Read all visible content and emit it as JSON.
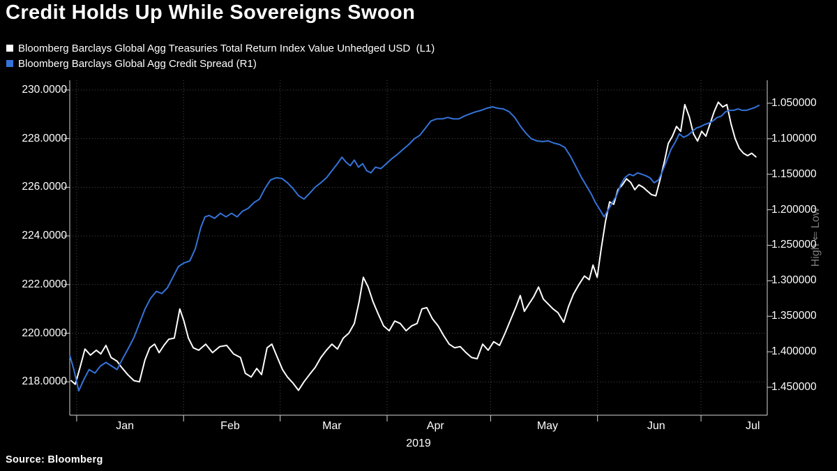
{
  "theme": {
    "background": "#000000",
    "text": "#ffffff",
    "grid": "#4c4c4c",
    "axis": "#d9d9d9",
    "muted": "#7d7d7d"
  },
  "footer": {
    "source": "Source: Bloomberg"
  },
  "chart_data": {
    "type": "line",
    "title": "Credit Holds Up While Sovereigns Swoon",
    "x_axis": {
      "year_label": "2019",
      "unit": "days since Jan 1 2019",
      "domain_days": [
        -2,
        200.2
      ],
      "month_boundaries_days": [
        0,
        31,
        59,
        90,
        120,
        151,
        181
      ],
      "month_labels": [
        {
          "label": "Jan",
          "day": 14
        },
        {
          "label": "Feb",
          "day": 44.5
        },
        {
          "label": "Mar",
          "day": 74
        },
        {
          "label": "Apr",
          "day": 104
        },
        {
          "label": "May",
          "day": 136.5
        },
        {
          "label": "Jun",
          "day": 168
        },
        {
          "label": "Jul",
          "day": 196
        }
      ]
    },
    "left_axis": {
      "range": [
        216.63,
        230.4
      ],
      "ticks": [
        {
          "label": "230.0000",
          "value": 230
        },
        {
          "label": "228.0000",
          "value": 228
        },
        {
          "label": "226.0000",
          "value": 226
        },
        {
          "label": "224.0000",
          "value": 224
        },
        {
          "label": "222.0000",
          "value": 222
        },
        {
          "label": "220.0000",
          "value": 220
        },
        {
          "label": "218.0000",
          "value": 218
        }
      ]
    },
    "right_axis": {
      "inverted": true,
      "note": "High ⇐ Low",
      "range": [
        1.4893,
        1.0176
      ],
      "ticks": [
        {
          "label": "1.050000",
          "value": 1.05
        },
        {
          "label": "1.100000",
          "value": 1.1
        },
        {
          "label": "1.150000",
          "value": 1.15
        },
        {
          "label": "1.200000",
          "value": 1.2
        },
        {
          "label": "1.250000",
          "value": 1.25
        },
        {
          "label": "1.300000",
          "value": 1.3
        },
        {
          "label": "1.350000",
          "value": 1.35
        },
        {
          "label": "1.400000",
          "value": 1.4
        },
        {
          "label": "1.450000",
          "value": 1.45
        }
      ]
    },
    "grid": {
      "dotted": true,
      "horizontal_on_left_ticks": true,
      "vertical_on_month_boundaries": true
    },
    "series": [
      {
        "name": "Bloomberg Barclays Global Agg Treasuries Total Return Index Value Unhedged USD  (L1)",
        "axis": "left",
        "color": "#ffffff",
        "points": [
          [
            -1.6,
            218.05
          ],
          [
            -0.4,
            217.9
          ],
          [
            1,
            218.6
          ],
          [
            2.4,
            219.35
          ],
          [
            4,
            219.1
          ],
          [
            5.7,
            219.3
          ],
          [
            7,
            219.15
          ],
          [
            8.5,
            219.5
          ],
          [
            10,
            219.0
          ],
          [
            11.7,
            218.85
          ],
          [
            13,
            218.6
          ],
          [
            14.8,
            218.3
          ],
          [
            16.6,
            218.05
          ],
          [
            18.2,
            218.0
          ],
          [
            19.8,
            218.9
          ],
          [
            21.2,
            219.4
          ],
          [
            22.6,
            219.55
          ],
          [
            23.9,
            219.2
          ],
          [
            25.3,
            219.5
          ],
          [
            26.7,
            219.75
          ],
          [
            28.3,
            219.8
          ],
          [
            29.9,
            221.0
          ],
          [
            31.1,
            220.5
          ],
          [
            32.4,
            219.8
          ],
          [
            33.8,
            219.4
          ],
          [
            35.4,
            219.3
          ],
          [
            37.4,
            219.55
          ],
          [
            39.4,
            219.2
          ],
          [
            41.5,
            219.45
          ],
          [
            43.5,
            219.5
          ],
          [
            45.5,
            219.15
          ],
          [
            47.5,
            219.0
          ],
          [
            48.9,
            218.35
          ],
          [
            50.6,
            218.2
          ],
          [
            52.2,
            218.55
          ],
          [
            53.6,
            218.3
          ],
          [
            55.2,
            219.4
          ],
          [
            56.6,
            219.55
          ],
          [
            58.2,
            219.0
          ],
          [
            59.7,
            218.5
          ],
          [
            61.1,
            218.2
          ],
          [
            62.7,
            217.95
          ],
          [
            64.3,
            217.65
          ],
          [
            65.9,
            218.0
          ],
          [
            67.5,
            218.3
          ],
          [
            69.2,
            218.6
          ],
          [
            70.8,
            219.0
          ],
          [
            72.4,
            219.3
          ],
          [
            74,
            219.55
          ],
          [
            75.6,
            219.35
          ],
          [
            77.3,
            219.8
          ],
          [
            78.9,
            220.0
          ],
          [
            80.5,
            220.4
          ],
          [
            81.9,
            221.3
          ],
          [
            83.1,
            222.3
          ],
          [
            84.5,
            221.9
          ],
          [
            85.9,
            221.3
          ],
          [
            87.4,
            220.8
          ],
          [
            89,
            220.3
          ],
          [
            90.6,
            220.1
          ],
          [
            92.2,
            220.5
          ],
          [
            93.8,
            220.4
          ],
          [
            95.5,
            220.1
          ],
          [
            97.1,
            220.3
          ],
          [
            98.7,
            220.4
          ],
          [
            100.1,
            221.0
          ],
          [
            101.5,
            221.05
          ],
          [
            103.1,
            220.6
          ],
          [
            104.8,
            220.3
          ],
          [
            106.4,
            219.9
          ],
          [
            108,
            219.55
          ],
          [
            109.6,
            219.4
          ],
          [
            111.2,
            219.45
          ],
          [
            112.9,
            219.2
          ],
          [
            114.5,
            219.0
          ],
          [
            116.1,
            218.95
          ],
          [
            117.7,
            219.55
          ],
          [
            119.3,
            219.3
          ],
          [
            120.9,
            219.65
          ],
          [
            122.6,
            219.5
          ],
          [
            124.2,
            220.0
          ],
          [
            125.8,
            220.55
          ],
          [
            127.4,
            221.1
          ],
          [
            128.6,
            221.55
          ],
          [
            129.8,
            220.9
          ],
          [
            131.1,
            221.2
          ],
          [
            132.5,
            221.5
          ],
          [
            133.9,
            221.9
          ],
          [
            135.3,
            221.4
          ],
          [
            136.7,
            221.2
          ],
          [
            138.1,
            221.0
          ],
          [
            139.5,
            220.85
          ],
          [
            141.2,
            220.45
          ],
          [
            142.6,
            221.1
          ],
          [
            144,
            221.6
          ],
          [
            145.6,
            222.0
          ],
          [
            147.2,
            222.35
          ],
          [
            148.6,
            222.2
          ],
          [
            149.7,
            222.8
          ],
          [
            150.9,
            222.3
          ],
          [
            152.1,
            223.5
          ],
          [
            153.3,
            224.6
          ],
          [
            154.5,
            225.4
          ],
          [
            155.7,
            225.3
          ],
          [
            156.9,
            225.9
          ],
          [
            158.2,
            226.1
          ],
          [
            159.4,
            226.35
          ],
          [
            160.6,
            226.2
          ],
          [
            161.8,
            225.9
          ],
          [
            163,
            226.1
          ],
          [
            164.2,
            226.0
          ],
          [
            165.4,
            225.85
          ],
          [
            166.6,
            225.7
          ],
          [
            167.9,
            225.65
          ],
          [
            169.1,
            226.3
          ],
          [
            170.3,
            227.0
          ],
          [
            171.5,
            227.8
          ],
          [
            172.7,
            228.1
          ],
          [
            173.9,
            228.5
          ],
          [
            175.1,
            228.3
          ],
          [
            176.3,
            229.4
          ],
          [
            177.6,
            228.9
          ],
          [
            178.8,
            228.2
          ],
          [
            180,
            227.9
          ],
          [
            181.2,
            228.3
          ],
          [
            182.4,
            228.1
          ],
          [
            183.6,
            228.6
          ],
          [
            184.8,
            229.1
          ],
          [
            186,
            229.5
          ],
          [
            187.3,
            229.3
          ],
          [
            188.5,
            229.4
          ],
          [
            189.7,
            228.6
          ],
          [
            190.9,
            228.0
          ],
          [
            192.1,
            227.6
          ],
          [
            193.3,
            227.4
          ],
          [
            194.5,
            227.3
          ],
          [
            195.7,
            227.4
          ],
          [
            196.9,
            227.25
          ]
        ]
      },
      {
        "name": "Bloomberg Barclays Global Agg Credit Spread (R1)",
        "axis": "right",
        "color": "#3573d9",
        "points": [
          [
            -2,
            1.405
          ],
          [
            -0.8,
            1.425
          ],
          [
            0.6,
            1.455
          ],
          [
            2,
            1.44
          ],
          [
            3.6,
            1.425
          ],
          [
            5.3,
            1.43
          ],
          [
            6.9,
            1.42
          ],
          [
            8.5,
            1.415
          ],
          [
            10.1,
            1.42
          ],
          [
            11.7,
            1.425
          ],
          [
            13.3,
            1.41
          ],
          [
            15,
            1.395
          ],
          [
            16.6,
            1.38
          ],
          [
            18.2,
            1.36
          ],
          [
            19.8,
            1.34
          ],
          [
            21.4,
            1.325
          ],
          [
            23.1,
            1.315
          ],
          [
            24.7,
            1.318
          ],
          [
            26.3,
            1.31
          ],
          [
            27.9,
            1.295
          ],
          [
            29.5,
            1.28
          ],
          [
            31.1,
            1.275
          ],
          [
            32.8,
            1.272
          ],
          [
            34.4,
            1.255
          ],
          [
            36,
            1.225
          ],
          [
            37.2,
            1.21
          ],
          [
            38.4,
            1.208
          ],
          [
            40,
            1.212
          ],
          [
            41.7,
            1.205
          ],
          [
            43.3,
            1.21
          ],
          [
            44.9,
            1.205
          ],
          [
            46.5,
            1.21
          ],
          [
            48.1,
            1.202
          ],
          [
            49.7,
            1.198
          ],
          [
            51.4,
            1.19
          ],
          [
            53,
            1.185
          ],
          [
            54.6,
            1.17
          ],
          [
            56.2,
            1.158
          ],
          [
            57.8,
            1.155
          ],
          [
            59.5,
            1.156
          ],
          [
            61.1,
            1.162
          ],
          [
            62.7,
            1.17
          ],
          [
            64.3,
            1.18
          ],
          [
            65.9,
            1.185
          ],
          [
            67.5,
            1.177
          ],
          [
            69.2,
            1.168
          ],
          [
            70.8,
            1.162
          ],
          [
            72.4,
            1.155
          ],
          [
            74,
            1.145
          ],
          [
            75.6,
            1.135
          ],
          [
            76.9,
            1.126
          ],
          [
            78.1,
            1.133
          ],
          [
            79.3,
            1.138
          ],
          [
            80.5,
            1.13
          ],
          [
            81.7,
            1.14
          ],
          [
            82.9,
            1.135
          ],
          [
            84.1,
            1.145
          ],
          [
            85.3,
            1.148
          ],
          [
            86.6,
            1.14
          ],
          [
            88.2,
            1.142
          ],
          [
            89.8,
            1.135
          ],
          [
            91.4,
            1.128
          ],
          [
            93,
            1.122
          ],
          [
            94.6,
            1.115
          ],
          [
            96.3,
            1.108
          ],
          [
            97.9,
            1.1
          ],
          [
            99.5,
            1.095
          ],
          [
            101.1,
            1.085
          ],
          [
            102.7,
            1.075
          ],
          [
            104.3,
            1.072
          ],
          [
            106,
            1.072
          ],
          [
            107.6,
            1.07
          ],
          [
            109.2,
            1.072
          ],
          [
            110.8,
            1.072
          ],
          [
            112.4,
            1.068
          ],
          [
            114,
            1.065
          ],
          [
            115.7,
            1.062
          ],
          [
            117.3,
            1.06
          ],
          [
            118.9,
            1.057
          ],
          [
            120.5,
            1.055
          ],
          [
            122.1,
            1.057
          ],
          [
            123.7,
            1.058
          ],
          [
            125.4,
            1.062
          ],
          [
            127,
            1.07
          ],
          [
            128.6,
            1.082
          ],
          [
            130.2,
            1.092
          ],
          [
            131.8,
            1.1
          ],
          [
            133.4,
            1.103
          ],
          [
            135.1,
            1.104
          ],
          [
            136.7,
            1.103
          ],
          [
            138.3,
            1.106
          ],
          [
            139.9,
            1.108
          ],
          [
            141.5,
            1.112
          ],
          [
            143.2,
            1.125
          ],
          [
            144.8,
            1.14
          ],
          [
            146.4,
            1.155
          ],
          [
            148,
            1.168
          ],
          [
            149.2,
            1.178
          ],
          [
            150.4,
            1.19
          ],
          [
            151.7,
            1.2
          ],
          [
            152.9,
            1.21
          ],
          [
            154.1,
            1.2
          ],
          [
            155.3,
            1.19
          ],
          [
            156.5,
            1.18
          ],
          [
            157.7,
            1.165
          ],
          [
            158.9,
            1.155
          ],
          [
            160.2,
            1.15
          ],
          [
            161.4,
            1.152
          ],
          [
            162.6,
            1.148
          ],
          [
            163.8,
            1.15
          ],
          [
            165,
            1.152
          ],
          [
            166.2,
            1.155
          ],
          [
            167.4,
            1.162
          ],
          [
            168.7,
            1.158
          ],
          [
            169.9,
            1.145
          ],
          [
            171.1,
            1.13
          ],
          [
            172.3,
            1.115
          ],
          [
            173.5,
            1.105
          ],
          [
            174.7,
            1.093
          ],
          [
            175.9,
            1.098
          ],
          [
            177.2,
            1.095
          ],
          [
            178.4,
            1.09
          ],
          [
            179.6,
            1.085
          ],
          [
            180.8,
            1.083
          ],
          [
            182,
            1.08
          ],
          [
            183.2,
            1.078
          ],
          [
            184.4,
            1.075
          ],
          [
            185.7,
            1.07
          ],
          [
            186.9,
            1.068
          ],
          [
            188.1,
            1.062
          ],
          [
            189.3,
            1.06
          ],
          [
            190.5,
            1.06
          ],
          [
            191.7,
            1.058
          ],
          [
            192.9,
            1.06
          ],
          [
            194.2,
            1.06
          ],
          [
            195.4,
            1.058
          ],
          [
            196.6,
            1.056
          ],
          [
            197.8,
            1.053
          ]
        ]
      }
    ]
  }
}
